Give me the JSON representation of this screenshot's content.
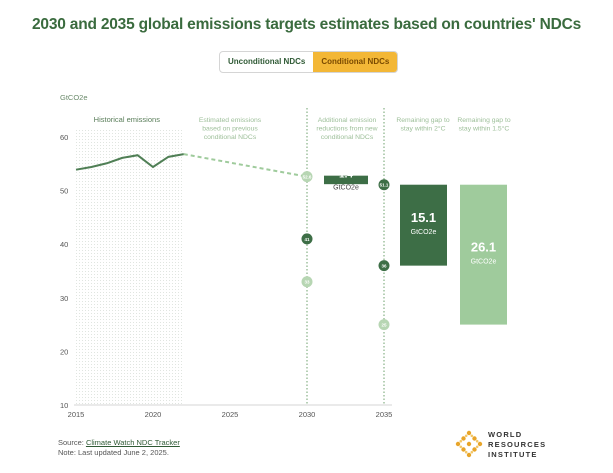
{
  "title": "2030 and 2035 global emissions targets estimates based on countries' NDCs",
  "toggle": {
    "unconditional_label": "Unconditional NDCs",
    "conditional_label": "Conditional NDCs"
  },
  "colors": {
    "accent": "#f3b736",
    "dark_green": "#3d6e46",
    "mid_green": "#4f7f55",
    "light_green": "#9fcb9c",
    "pale_green": "#b7d6b3",
    "historical_line": "#4f7f55"
  },
  "chart_data": {
    "type": "line",
    "ylabel": "GtCO2e",
    "ylim": [
      10,
      60
    ],
    "xlim": [
      2015,
      2035
    ],
    "yticks": [
      "10",
      "20",
      "30",
      "40",
      "50",
      "60"
    ],
    "xticks": [
      "2015",
      "2020",
      "2025",
      "2030",
      "2035"
    ],
    "grid": false,
    "historical": {
      "label": "Historical emissions",
      "x": [
        2015,
        2016,
        2017,
        2018,
        2019,
        2020,
        2021,
        2022
      ],
      "y": [
        53.9,
        54.4,
        55.1,
        56.1,
        56.6,
        54.4,
        56.3,
        56.8
      ]
    },
    "projection": {
      "x": [
        2022,
        2030
      ],
      "y": [
        56.8,
        52.6
      ]
    },
    "annotations": [
      {
        "x": 2025,
        "text_lines": [
          "Estimated emissions",
          "based on previous",
          "conditional NDCs"
        ]
      },
      {
        "x": 2030,
        "text_lines": [
          "Additional emission",
          "reductions from new",
          "conditional NDCs"
        ]
      },
      {
        "x": 2035,
        "text_lines": [
          "Remaining gap to",
          "stay within 2°C"
        ]
      },
      {
        "x": 2035,
        "text_lines": [
          "Remaining gap to",
          "stay within 1.5°C"
        ]
      }
    ],
    "points": [
      {
        "x": 2030,
        "value": 52.6,
        "label": "52.6",
        "style": "pale"
      },
      {
        "x": 2030,
        "value": 41,
        "label": "41",
        "style": "dark"
      },
      {
        "x": 2030,
        "value": 33,
        "label": "33",
        "style": "pale"
      },
      {
        "x": 2035,
        "value": 51.1,
        "label": "51.1",
        "style": "dark"
      },
      {
        "x": 2035,
        "value": 36,
        "label": "36",
        "style": "dark"
      },
      {
        "x": 2035,
        "value": 25,
        "label": "25",
        "style": "pale"
      }
    ],
    "reduction_bar": {
      "from": 52.6,
      "to": 51.2,
      "value_label": "1.4",
      "unit_label": "GtCO2e"
    },
    "gap_bars": [
      {
        "name": "2C gap",
        "from": 51.1,
        "to": 36,
        "value_label": "15.1",
        "unit_label": "GtCO2e",
        "style": "dark"
      },
      {
        "name": "1.5C gap",
        "from": 51.1,
        "to": 25,
        "value_label": "26.1",
        "unit_label": "GtCO2e",
        "style": "light"
      }
    ]
  },
  "footer": {
    "source_prefix": "Source: ",
    "source_link": "Climate Watch NDC Tracker",
    "note": "Note: Last updated June 2, 2025."
  },
  "logo": {
    "line1": "WORLD",
    "line2": "RESOURCES",
    "line3": "INSTITUTE"
  }
}
